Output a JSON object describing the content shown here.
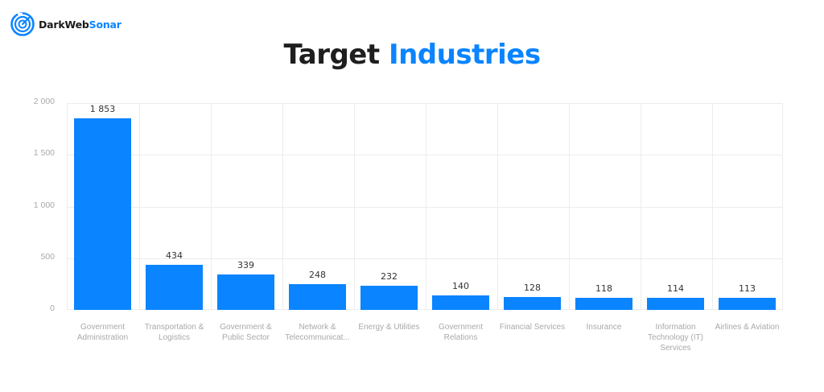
{
  "brand": {
    "name_dark": "DarkWeb",
    "name_accent": "Sonar",
    "icon": "radar-icon",
    "accent_color": "#0a84ff"
  },
  "header": {
    "title_dark": "Target",
    "title_accent": "Industries"
  },
  "chart_data": {
    "type": "bar",
    "title": "Target Industries",
    "xlabel": "",
    "ylabel": "",
    "ylim": [
      0,
      2000
    ],
    "yticks": [
      "0",
      "500",
      "1 000",
      "1 500",
      "2 000"
    ],
    "grid": true,
    "legend": null,
    "bar_color": "#0a84ff",
    "categories": [
      "Government Administration",
      "Transportation & Logistics",
      "Government & Public Sector",
      "Network & Telecommunicat...",
      "Energy & Utilities",
      "Government Relations",
      "Financial Services",
      "Insurance",
      "Information Technology (IT) Services",
      "Airlines & Aviation"
    ],
    "category_lines": [
      [
        "Government",
        "Administration"
      ],
      [
        "Transportation &",
        "Logistics"
      ],
      [
        "Government &",
        "Public Sector"
      ],
      [
        "Network &",
        "Telecommunicat..."
      ],
      [
        "Energy & Utilities"
      ],
      [
        "Government",
        "Relations"
      ],
      [
        "Financial Services"
      ],
      [
        "Insurance"
      ],
      [
        "Information",
        "Technology (IT)",
        "Services"
      ],
      [
        "Airlines & Aviation"
      ]
    ],
    "values": [
      1853,
      434,
      339,
      248,
      232,
      140,
      128,
      118,
      114,
      113
    ],
    "value_labels": [
      "1 853",
      "434",
      "339",
      "248",
      "232",
      "140",
      "128",
      "118",
      "114",
      "113"
    ]
  }
}
